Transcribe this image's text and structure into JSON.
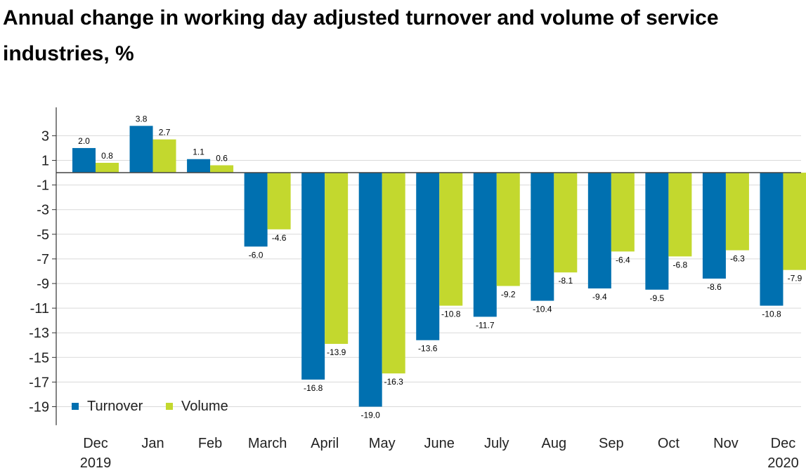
{
  "chart_data": {
    "type": "bar",
    "title": "Annual change in working day adjusted turnover and volume of service industries, %",
    "categories": [
      {
        "label": "Dec",
        "sub": "2019"
      },
      {
        "label": "Jan",
        "sub": ""
      },
      {
        "label": "Feb",
        "sub": ""
      },
      {
        "label": "March",
        "sub": ""
      },
      {
        "label": "April",
        "sub": ""
      },
      {
        "label": "May",
        "sub": ""
      },
      {
        "label": "June",
        "sub": ""
      },
      {
        "label": "July",
        "sub": ""
      },
      {
        "label": "Aug",
        "sub": ""
      },
      {
        "label": "Sep",
        "sub": ""
      },
      {
        "label": "Oct",
        "sub": ""
      },
      {
        "label": "Nov",
        "sub": ""
      },
      {
        "label": "Dec",
        "sub": "2020"
      }
    ],
    "series": [
      {
        "name": "Turnover",
        "color": "#0070b0",
        "values": [
          2.0,
          3.8,
          1.1,
          -6.0,
          -16.8,
          -19.0,
          -13.6,
          -11.7,
          -10.4,
          -9.4,
          -9.5,
          -8.6,
          -10.8
        ],
        "labels": [
          "2.0",
          "3.8",
          "1.1",
          "-6.0",
          "-16.8",
          "-19.0",
          "-13.6",
          "-11.7",
          "-10.4",
          "-9.4",
          "-9.5",
          "-8.6",
          "-10.8"
        ]
      },
      {
        "name": "Volume",
        "color": "#c3d82e",
        "values": [
          0.8,
          2.7,
          0.6,
          -4.6,
          -13.9,
          -16.3,
          -10.8,
          -9.2,
          -8.1,
          -6.4,
          -6.8,
          -6.3,
          -7.9
        ],
        "labels": [
          "0.8",
          "2.7",
          "0.6",
          "-4.6",
          "-13.9",
          "-16.3",
          "-10.8",
          "-9.2",
          "-8.1",
          "-6.4",
          "-6.8",
          "-6.3",
          "-7.9"
        ]
      }
    ],
    "yticks": [
      3,
      1,
      -1,
      -3,
      -5,
      -7,
      -9,
      -11,
      -13,
      -15,
      -17,
      -19
    ],
    "ylim": [
      -20.5,
      5.3
    ],
    "grid": true,
    "legend_position": "bottom-left"
  }
}
